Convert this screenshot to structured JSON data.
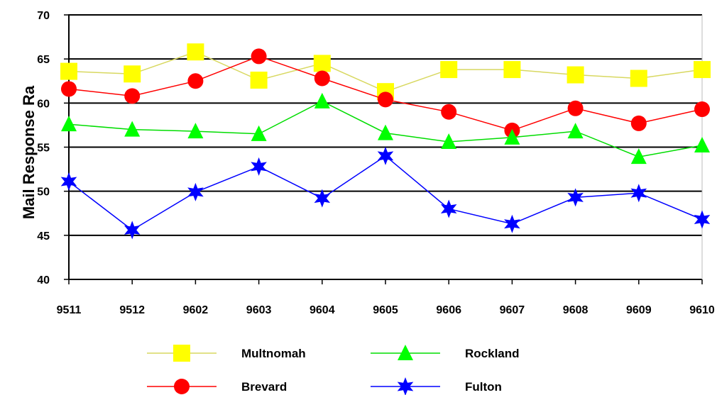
{
  "chart_data": {
    "type": "line",
    "title": "",
    "xlabel": "",
    "ylabel": "Mail Response Ra",
    "ylim": [
      40,
      70
    ],
    "yticks": [
      "40",
      "45",
      "50",
      "55",
      "60",
      "65",
      "70"
    ],
    "categories": [
      "9511",
      "9512",
      "9602",
      "9603",
      "9604",
      "9605",
      "9606",
      "9607",
      "9608",
      "9609",
      "9610"
    ],
    "grid": true,
    "legend_position": "bottom",
    "series": [
      {
        "name": "Multnomah",
        "color": "#ffff00",
        "line_color": "#d8d860",
        "marker": "square",
        "values": [
          63.6,
          63.3,
          65.8,
          62.6,
          64.5,
          61.3,
          63.8,
          63.8,
          63.2,
          62.8,
          63.8
        ]
      },
      {
        "name": "Brevard",
        "color": "#ff0000",
        "line_color": "#ff0000",
        "marker": "circle",
        "values": [
          61.6,
          60.8,
          62.5,
          65.3,
          62.8,
          60.4,
          59.0,
          56.9,
          59.4,
          57.7,
          59.3
        ]
      },
      {
        "name": "Rockland",
        "color": "#00ff00",
        "line_color": "#00dd00",
        "marker": "triangle",
        "values": [
          57.6,
          57.0,
          56.8,
          56.5,
          60.2,
          56.6,
          55.6,
          56.1,
          56.8,
          53.9,
          55.2
        ]
      },
      {
        "name": "Fulton",
        "color": "#0000ff",
        "line_color": "#0000ff",
        "marker": "star",
        "values": [
          51.1,
          45.6,
          49.9,
          52.8,
          49.2,
          54.0,
          48.0,
          46.3,
          49.3,
          49.8,
          46.8
        ]
      }
    ]
  }
}
